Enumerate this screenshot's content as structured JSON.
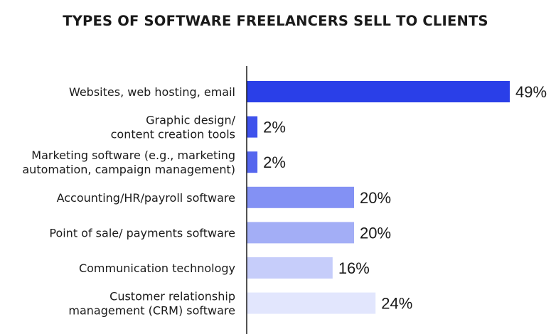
{
  "chart_data": {
    "type": "bar",
    "orientation": "horizontal",
    "title": "TYPES OF SOFTWARE FREELANCERS SELL TO CLIENTS",
    "categories": [
      [
        "Websites, web hosting, email"
      ],
      [
        "Graphic design/",
        "content creation tools"
      ],
      [
        "Marketing software (e.g., marketing",
        "automation, campaign management)"
      ],
      [
        "Accounting/HR/payroll software"
      ],
      [
        "Point of sale/ payments software"
      ],
      [
        "Communication technology"
      ],
      [
        "Customer relationship",
        "management (CRM) software"
      ]
    ],
    "values": [
      49,
      2,
      2,
      20,
      20,
      16,
      24
    ],
    "value_labels": [
      "49%",
      "2%",
      "2%",
      "20%",
      "20%",
      "16%",
      "24%"
    ],
    "colors": [
      "#2a3fe8",
      "#3f52ec",
      "#5566ee",
      "#8391f4",
      "#a3aef6",
      "#c6cdfa",
      "#e2e6fd"
    ],
    "xlim": [
      0,
      49
    ],
    "grid": false,
    "legend": "none"
  }
}
